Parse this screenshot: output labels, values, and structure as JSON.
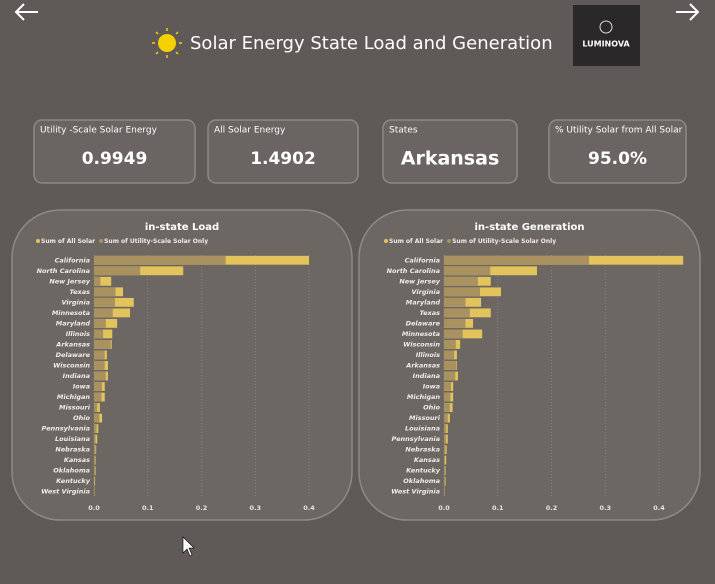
{
  "header": {
    "title": "Solar Energy State Load and Generation",
    "logo": "LUMINOVA"
  },
  "cards": [
    {
      "label": "Utility -Scale Solar Energy",
      "value": "0.9949"
    },
    {
      "label": "All Solar Energy",
      "value": "1.4902"
    },
    {
      "label": "States",
      "value": "Arkansas"
    },
    {
      "label": "% Utility Solar from All Solar",
      "value": "95.0%"
    }
  ],
  "chart_data": [
    {
      "type": "bar",
      "orientation": "horizontal",
      "title": "in-state Load",
      "categories": [
        "California",
        "North Carolina",
        "New Jersey",
        "Texas",
        "Virginia",
        "Minnesota",
        "Maryland",
        "Illinois",
        "Arkansas",
        "Delaware",
        "Wisconsin",
        "Indiana",
        "Iowa",
        "Michigan",
        "Missouri",
        "Ohio",
        "Pennsylvania",
        "Louisiana",
        "Nebraska",
        "Kansas",
        "Oklahoma",
        "Kentucky",
        "West Virginia"
      ],
      "series": [
        {
          "name": "Sum of All Solar",
          "color": "#e3c45c",
          "values": [
            0.4,
            0.166,
            0.032,
            0.054,
            0.074,
            0.067,
            0.043,
            0.034,
            0.033,
            0.024,
            0.026,
            0.026,
            0.02,
            0.02,
            0.011,
            0.015,
            0.008,
            0.006,
            0.004,
            0.003,
            0.003,
            0.002,
            0.001
          ]
        },
        {
          "name": "Sum of Utility-Scale Solar Only",
          "color": "#a99260",
          "values": [
            0.245,
            0.086,
            0.012,
            0.04,
            0.039,
            0.035,
            0.022,
            0.017,
            0.031,
            0.02,
            0.02,
            0.022,
            0.015,
            0.014,
            0.006,
            0.01,
            0.005,
            0.003,
            0.003,
            0.002,
            0.002,
            0.001,
            0.0005
          ]
        }
      ],
      "xlim": [
        0,
        0.42
      ],
      "xticks": [
        {
          "value": 0,
          "label": "0.0"
        },
        0.1,
        0.2,
        0.3,
        0.4
      ],
      "grid": true
    },
    {
      "type": "bar",
      "orientation": "horizontal",
      "title": "in-state Generation",
      "categories": [
        "California",
        "North Carolina",
        "New Jersey",
        "Virginia",
        "Maryland",
        "Texas",
        "Delaware",
        "Minnesota",
        "Wisconsin",
        "Illinois",
        "Arkansas",
        "Indiana",
        "Iowa",
        "Michigan",
        "Ohio",
        "Missouri",
        "Louisiana",
        "Pennsylvania",
        "Nebraska",
        "Kansas",
        "Kentucky",
        "Oklahoma",
        "West Virginia"
      ],
      "series": [
        {
          "name": "Sum of All Solar",
          "color": "#e3c45c",
          "values": [
            0.445,
            0.173,
            0.087,
            0.106,
            0.069,
            0.087,
            0.054,
            0.071,
            0.03,
            0.024,
            0.024,
            0.026,
            0.017,
            0.017,
            0.016,
            0.011,
            0.007,
            0.007,
            0.005,
            0.004,
            0.003,
            0.003,
            0.001
          ]
        },
        {
          "name": "Sum of Utility-Scale Solar Only",
          "color": "#a99260",
          "values": [
            0.27,
            0.086,
            0.063,
            0.067,
            0.04,
            0.048,
            0.04,
            0.035,
            0.022,
            0.019,
            0.023,
            0.021,
            0.013,
            0.012,
            0.011,
            0.007,
            0.004,
            0.004,
            0.003,
            0.002,
            0.002,
            0.002,
            0.0005
          ]
        }
      ],
      "xlim": [
        0,
        0.45
      ],
      "xticks": [
        {
          "value": 0,
          "label": "0.0"
        },
        0.1,
        0.2,
        0.3,
        0.4
      ],
      "grid": true
    }
  ]
}
